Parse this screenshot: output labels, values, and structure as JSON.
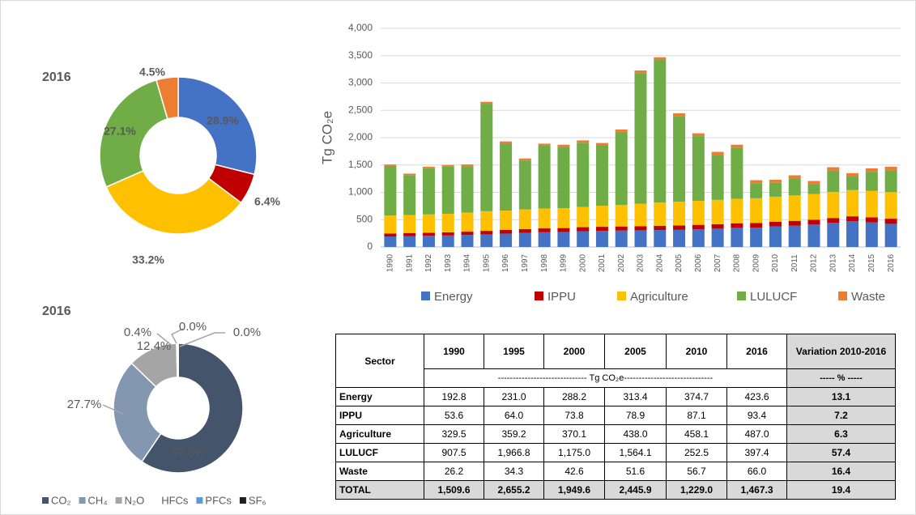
{
  "chart_data": [
    {
      "type": "donut",
      "title": "2016",
      "values": [
        28.9,
        6.4,
        33.2,
        27.1,
        4.5
      ],
      "value_labels": [
        "28.9%",
        "6.4%",
        "33.2%",
        "27.1%",
        "4.5%"
      ],
      "colors": [
        "#4472c4",
        "#c00000",
        "#ffc000",
        "#70ad47",
        "#ed7d31"
      ]
    },
    {
      "type": "bar",
      "stacked": true,
      "ylabel": "Tg CO₂e",
      "categories": [
        "1990",
        "1991",
        "1992",
        "1993",
        "1994",
        "1995",
        "1996",
        "1997",
        "1998",
        "1999",
        "2000",
        "2001",
        "2002",
        "2003",
        "2004",
        "2005",
        "2006",
        "2007",
        "2008",
        "2009",
        "2010",
        "2011",
        "2012",
        "2013",
        "2014",
        "2015",
        "2016"
      ],
      "series": [
        {
          "name": "Energy",
          "color": "#4472c4",
          "values": [
            192.8,
            200,
            205,
            210,
            220,
            231.0,
            245,
            260,
            270,
            275,
            288.2,
            295,
            300,
            305,
            310,
            313.4,
            325,
            335,
            350,
            355,
            374.7,
            390,
            410,
            440,
            470,
            450,
            423.6
          ]
        },
        {
          "name": "IPPU",
          "color": "#c00000",
          "values": [
            53.6,
            55,
            56,
            58,
            60,
            64.0,
            66,
            68,
            70,
            71,
            73.8,
            74,
            75,
            76,
            77,
            78.9,
            80,
            82,
            84,
            85,
            87.1,
            88,
            89,
            90,
            91,
            92,
            93.4
          ]
        },
        {
          "name": "Agriculture",
          "color": "#ffc000",
          "values": [
            329.5,
            330,
            335,
            340,
            350,
            359.2,
            355,
            360,
            362,
            365,
            370.1,
            385,
            395,
            410,
            425,
            438.0,
            440,
            445,
            448,
            452,
            458.1,
            465,
            470,
            478,
            480,
            483,
            487.0
          ]
        },
        {
          "name": "LULUCF",
          "color": "#70ad47",
          "values": [
            907.5,
            730,
            845,
            862,
            850,
            1966.8,
            1230,
            895,
            1150,
            1120,
            1175.0,
            1105,
            1335,
            2390,
            2610,
            1564.1,
            1183,
            825,
            935,
            275,
            252.5,
            310,
            180,
            390,
            248,
            350,
            397.4
          ]
        },
        {
          "name": "Waste",
          "color": "#ed7d31",
          "values": [
            26.2,
            27,
            28,
            29,
            30,
            34.3,
            35,
            36,
            38,
            40,
            42.6,
            43,
            45,
            48,
            50,
            51.6,
            52,
            53,
            54,
            55,
            56.7,
            58,
            59,
            61,
            62,
            64,
            66.0
          ]
        }
      ],
      "ylim": [
        0,
        4000
      ],
      "yticks": [
        0,
        500,
        {
          "value": 1000,
          "label": "1,000"
        },
        {
          "value": 1500,
          "label": "1,500"
        },
        {
          "value": 2000,
          "label": "2,000"
        },
        {
          "value": 2500,
          "label": "2,500"
        },
        {
          "value": 3000,
          "label": "3,000"
        },
        {
          "value": 3500,
          "label": "3,500"
        },
        {
          "value": 4000,
          "label": "4,000"
        }
      ],
      "grid": true,
      "legend": "bottom"
    },
    {
      "type": "donut",
      "title": "2016",
      "categories": [
        "CO₂",
        "CH₄",
        "N₂O",
        "HFCs",
        "PFCs",
        "SF₆"
      ],
      "values": [
        59.5,
        27.7,
        12.4,
        0.4,
        0.0,
        0.0
      ],
      "value_labels": [
        "59.5%",
        "27.7%",
        "12.4%",
        "0.4%",
        "0.0%",
        "0.0%"
      ],
      "colors": [
        "#44546a",
        "#8497b0",
        "#a5a5a5",
        "#ffffff",
        "#5b9bd5",
        "#1f1f1f"
      ],
      "legend": "bottom"
    }
  ],
  "table": {
    "columns": [
      "Sector",
      "1990",
      "1995",
      "2000",
      "2005",
      "2010",
      "2016",
      "Variation 2010-2016"
    ],
    "subheader": [
      "------------------------------ Tg CO₂e------------------------------",
      "----- % -----"
    ],
    "rows": [
      [
        "Energy",
        "192.8",
        "231.0",
        "288.2",
        "313.4",
        "374.7",
        "423.6",
        "13.1"
      ],
      [
        "IPPU",
        "53.6",
        "64.0",
        "73.8",
        "78.9",
        "87.1",
        "93.4",
        "7.2"
      ],
      [
        "Agriculture",
        "329.5",
        "359.2",
        "370.1",
        "438.0",
        "458.1",
        "487.0",
        "6.3"
      ],
      [
        "LULUCF",
        "907.5",
        "1,966.8",
        "1,175.0",
        "1,564.1",
        "252.5",
        "397.4",
        "57.4"
      ],
      [
        "Waste",
        "26.2",
        "34.3",
        "42.6",
        "51.6",
        "56.7",
        "66.0",
        "16.4"
      ],
      [
        "TOTAL",
        "1,509.6",
        "2,655.2",
        "1,949.6",
        "2,445.9",
        "1,229.0",
        "1,467.3",
        "19.4"
      ]
    ]
  }
}
